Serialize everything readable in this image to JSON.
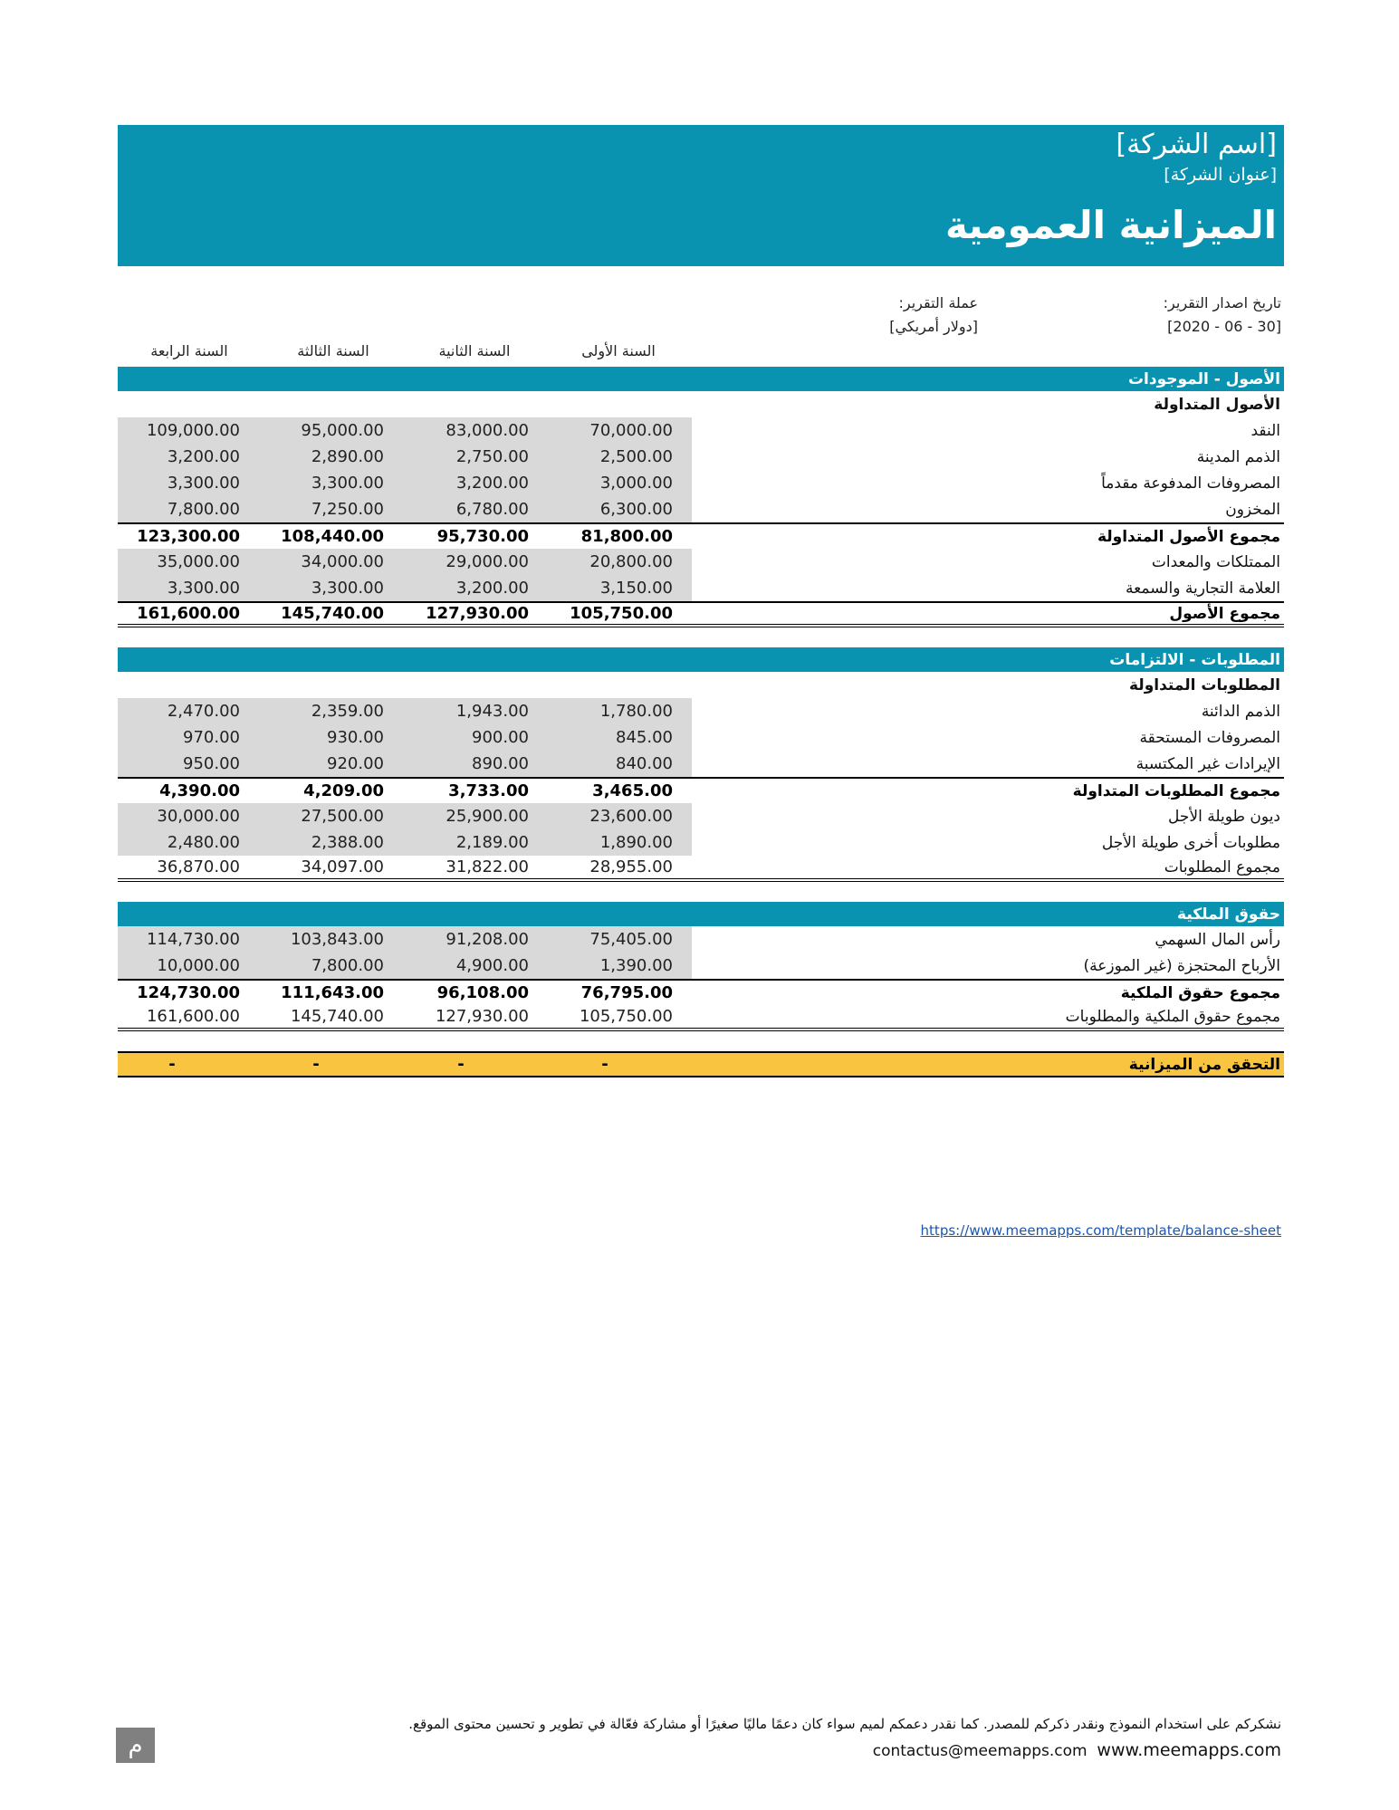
{
  "header": {
    "company_name": "[اسم الشركة]",
    "company_address": "[عنوان الشركة]",
    "title": "الميزانية العمومية"
  },
  "meta": {
    "date_label": "تاريخ اصدار التقرير:",
    "date_value": "[30 - 06 - 2020]",
    "currency_label": "عملة التقرير:",
    "currency_value": "[دولار أمريكي]"
  },
  "years": [
    "السنة الأولى",
    "السنة الثانية",
    "السنة الثالثة",
    "السنة الرابعة"
  ],
  "colors": {
    "accent": "#0a93b0",
    "shade": "#d9d9d9",
    "check": "#f9c440"
  },
  "rows": [
    {
      "type": "section",
      "label": "الأصول - الموجودات"
    },
    {
      "type": "sub",
      "label": "الأصول المتداولة"
    },
    {
      "type": "data",
      "label": "النقد",
      "values": [
        "70,000.00",
        "83,000.00",
        "95,000.00",
        "109,000.00"
      ]
    },
    {
      "type": "data",
      "label": "الذمم المدينة",
      "values": [
        "2,500.00",
        "2,750.00",
        "2,890.00",
        "3,200.00"
      ]
    },
    {
      "type": "data",
      "label": "المصروفات المدفوعة مقدماً",
      "values": [
        "3,000.00",
        "3,200.00",
        "3,300.00",
        "3,300.00"
      ]
    },
    {
      "type": "data",
      "label": "المخزون",
      "values": [
        "6,300.00",
        "6,780.00",
        "7,250.00",
        "7,800.00"
      ]
    },
    {
      "type": "total",
      "label": "مجموع الأصول المتداولة",
      "values": [
        "81,800.00",
        "95,730.00",
        "108,440.00",
        "123,300.00"
      ]
    },
    {
      "type": "data",
      "label": "الممتلكات والمعدات",
      "values": [
        "20,800.00",
        "29,000.00",
        "34,000.00",
        "35,000.00"
      ]
    },
    {
      "type": "data",
      "label": "العلامة التجارية والسمعة",
      "values": [
        "3,150.00",
        "3,200.00",
        "3,300.00",
        "3,300.00"
      ]
    },
    {
      "type": "total grand",
      "label": "مجموع الأصول",
      "values": [
        "105,750.00",
        "127,930.00",
        "145,740.00",
        "161,600.00"
      ]
    },
    {
      "type": "spacer"
    },
    {
      "type": "section",
      "label": "المطلوبات  - الالتزامات"
    },
    {
      "type": "sub",
      "label": "المطلوبات المتداولة"
    },
    {
      "type": "data",
      "label": "الذمم الدائنة",
      "values": [
        "1,780.00",
        "1,943.00",
        "2,359.00",
        "2,470.00"
      ]
    },
    {
      "type": "data",
      "label": "المصروفات المستحقة",
      "values": [
        "845.00",
        "900.00",
        "930.00",
        "970.00"
      ]
    },
    {
      "type": "data",
      "label": "الإيرادات غير المكتسبة",
      "values": [
        "840.00",
        "890.00",
        "920.00",
        "950.00"
      ]
    },
    {
      "type": "total",
      "label": "مجموع المطلوبات المتداولة",
      "values": [
        "3,465.00",
        "3,733.00",
        "4,209.00",
        "4,390.00"
      ]
    },
    {
      "type": "data",
      "label": "ديون طويلة الأجل",
      "values": [
        "23,600.00",
        "25,900.00",
        "27,500.00",
        "30,000.00"
      ]
    },
    {
      "type": "data",
      "label": "مطلوبات أخرى طويلة الأجل",
      "values": [
        "1,890.00",
        "2,189.00",
        "2,388.00",
        "2,480.00"
      ]
    },
    {
      "type": "sum grand",
      "label": "مجموع المطلوبات",
      "values": [
        "28,955.00",
        "31,822.00",
        "34,097.00",
        "36,870.00"
      ]
    },
    {
      "type": "spacer"
    },
    {
      "type": "section",
      "label": "حقوق الملكية"
    },
    {
      "type": "data",
      "label": "رأس المال السهمي",
      "values": [
        "75,405.00",
        "91,208.00",
        "103,843.00",
        "114,730.00"
      ]
    },
    {
      "type": "data",
      "label": "الأرباح المحتجزة (غير الموزعة)",
      "values": [
        "1,390.00",
        "4,900.00",
        "7,800.00",
        "10,000.00"
      ]
    },
    {
      "type": "total",
      "label": "مجموع حقوق الملكية",
      "values": [
        "76,795.00",
        "96,108.00",
        "111,643.00",
        "124,730.00"
      ]
    },
    {
      "type": "sum grand",
      "label": "مجموع حقوق الملكية والمطلوبات",
      "values": [
        "105,750.00",
        "127,930.00",
        "145,740.00",
        "161,600.00"
      ]
    },
    {
      "type": "spacer"
    },
    {
      "type": "check",
      "label": "التحقق من الميزانية",
      "values": [
        "-",
        "-",
        "-",
        "-"
      ]
    }
  ],
  "footer": {
    "link": "https://www.meemapps.com/template/balance-sheet",
    "note": "نشكركم على استخدام النموذج ونقدر ذكركم للمصدر. كما نقدر دعمكم لميم سواء كان دعمًا ماليًا صغيرًا أو مشاركة فعّالة في تطوير و تحسين محتوى الموقع.",
    "email": "contactus@meemapps.com",
    "website": "www.meemapps.com",
    "logo": "م"
  }
}
